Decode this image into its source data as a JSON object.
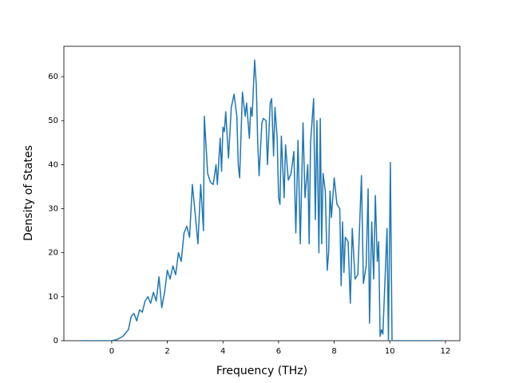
{
  "chart_data": {
    "type": "line",
    "xlabel": "Frequency (THz)",
    "ylabel": "Density of States",
    "xlim": [
      -1.72,
      12.52
    ],
    "ylim": [
      0,
      66.9
    ],
    "xticks": [
      0,
      2,
      4,
      6,
      8,
      10,
      12
    ],
    "yticks": [
      0,
      10,
      20,
      30,
      40,
      50,
      60
    ],
    "x": [
      -1.1,
      0,
      0.2,
      0.4,
      0.6,
      0.7,
      0.8,
      0.9,
      1.0,
      1.1,
      1.2,
      1.3,
      1.4,
      1.5,
      1.6,
      1.7,
      1.8,
      1.9,
      2.0,
      2.1,
      2.2,
      2.3,
      2.4,
      2.5,
      2.6,
      2.7,
      2.8,
      2.9,
      3.0,
      3.1,
      3.2,
      3.3,
      3.33,
      3.45,
      3.55,
      3.65,
      3.75,
      3.8,
      3.9,
      3.95,
      4.0,
      4.05,
      4.1,
      4.2,
      4.3,
      4.4,
      4.5,
      4.55,
      4.6,
      4.7,
      4.8,
      4.85,
      4.95,
      5.0,
      5.05,
      5.14,
      5.2,
      5.25,
      5.3,
      5.4,
      5.45,
      5.55,
      5.6,
      5.7,
      5.75,
      5.82,
      5.87,
      5.95,
      6.0,
      6.05,
      6.1,
      6.2,
      6.25,
      6.35,
      6.45,
      6.55,
      6.62,
      6.7,
      6.78,
      6.88,
      6.95,
      7.05,
      7.1,
      7.15,
      7.2,
      7.26,
      7.32,
      7.38,
      7.45,
      7.5,
      7.55,
      7.6,
      7.68,
      7.75,
      7.8,
      7.85,
      7.9,
      8.0,
      8.1,
      8.2,
      8.25,
      8.3,
      8.35,
      8.4,
      8.5,
      8.58,
      8.65,
      8.75,
      8.85,
      8.98,
      9.05,
      9.15,
      9.22,
      9.27,
      9.35,
      9.42,
      9.48,
      9.55,
      9.6,
      9.65,
      9.7,
      9.75,
      9.9,
      9.95,
      10.02,
      10.08,
      11.9
    ],
    "series": [
      {
        "color": "#1f77b4",
        "values": [
          0,
          0,
          0.3,
          1,
          2.5,
          5.5,
          6.2,
          4.5,
          7,
          6.5,
          9,
          10,
          8.5,
          11,
          9,
          14.5,
          7.5,
          11,
          16,
          14,
          17,
          15,
          20,
          18,
          24.5,
          26,
          23.5,
          35.5,
          29,
          22,
          35.5,
          25,
          51,
          38,
          36,
          35.5,
          40,
          35.5,
          46,
          38.5,
          48.5,
          47.5,
          52,
          41.5,
          53,
          56,
          51,
          40,
          37,
          56.5,
          51,
          54,
          46,
          53,
          51,
          63.8,
          58,
          45,
          37.5,
          49.5,
          50.5,
          50,
          40,
          54,
          55,
          42,
          53,
          46,
          32.5,
          31,
          46.5,
          32.5,
          44.5,
          36.5,
          38,
          43,
          24.5,
          45.5,
          22,
          49.5,
          32.5,
          40,
          22,
          45,
          49.5,
          55,
          27.5,
          50,
          20,
          50.5,
          22,
          38,
          34,
          16,
          20,
          34,
          28,
          37,
          31,
          30,
          12.5,
          27,
          15.5,
          23.5,
          22.5,
          8.5,
          25.5,
          14,
          15,
          37.5,
          13,
          17,
          34.5,
          4,
          27,
          14,
          33,
          18,
          22.5,
          1,
          2.5,
          1.5,
          25.5,
          0,
          40.5,
          0,
          0
        ]
      }
    ]
  }
}
